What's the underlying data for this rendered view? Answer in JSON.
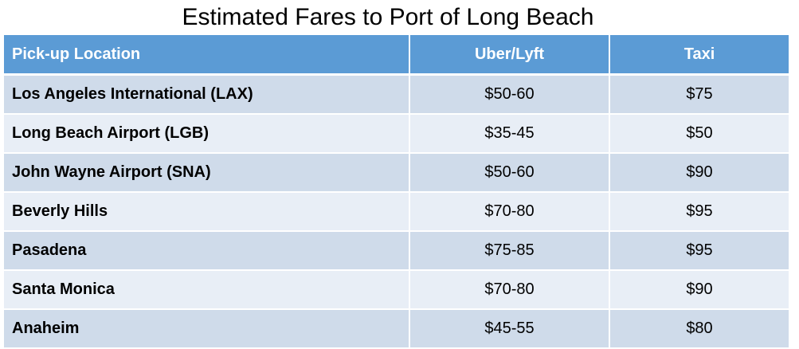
{
  "title": "Estimated Fares to Port of Long Beach",
  "colors": {
    "header_bg": "#5b9bd5",
    "header_text": "#ffffff",
    "row_dark": "#cfdbea",
    "row_light": "#e8eef6"
  },
  "table": {
    "headers": [
      "Pick-up Location",
      "Uber/Lyft",
      "Taxi"
    ],
    "rows": [
      [
        "Los Angeles International (LAX)",
        "$50-60",
        "$75"
      ],
      [
        "Long Beach Airport (LGB)",
        "$35-45",
        "$50"
      ],
      [
        "John Wayne Airport (SNA)",
        "$50-60",
        "$90"
      ],
      [
        "Beverly Hills",
        "$70-80",
        "$95"
      ],
      [
        "Pasadena",
        "$75-85",
        "$95"
      ],
      [
        "Santa Monica",
        "$70-80",
        "$90"
      ],
      [
        "Anaheim",
        "$45-55",
        "$80"
      ]
    ]
  }
}
